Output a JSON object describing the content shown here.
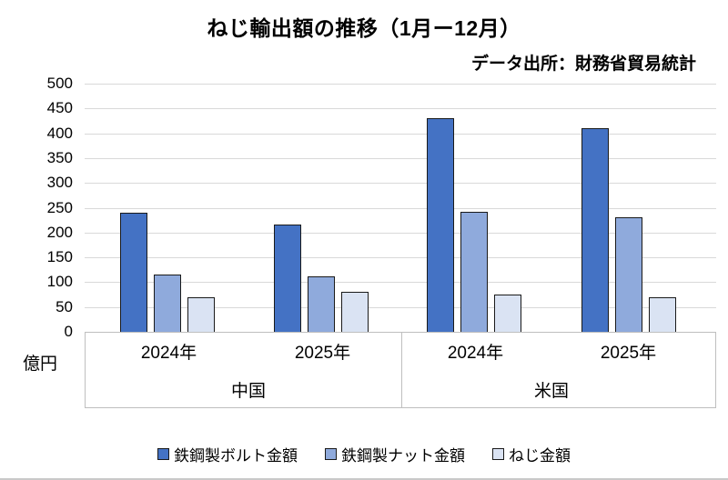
{
  "chart_data": {
    "type": "bar",
    "title": "ねじ輸出額の推移（1月ー12月）",
    "source_note": "データ出所：財務省貿易統計",
    "unit_label": "億円",
    "y_axis": {
      "min": 0,
      "max": 500,
      "step": 50,
      "ticks": [
        0,
        50,
        100,
        150,
        200,
        250,
        300,
        350,
        400,
        450,
        500
      ]
    },
    "grid": true,
    "legend_position": "bottom",
    "groups": [
      {
        "label": "中国",
        "years": [
          "2024年",
          "2025年"
        ]
      },
      {
        "label": "米国",
        "years": [
          "2024年",
          "2025年"
        ]
      }
    ],
    "categories": [
      "中国 2024年",
      "中国 2025年",
      "米国 2024年",
      "米国 2025年"
    ],
    "series": [
      {
        "name": "鉄鋼製ボルト金額",
        "color": "#4472c4",
        "values": [
          240,
          217,
          430,
          410
        ]
      },
      {
        "name": "鉄鋼製ナット金額",
        "color": "#8faadc",
        "values": [
          115,
          112,
          242,
          230
        ]
      },
      {
        "name": "ねじ金額",
        "color": "#dae3f3",
        "values": [
          70,
          80,
          75,
          70
        ]
      }
    ],
    "colors": {
      "gridline": "#d9d9d9",
      "axis_border": "#bfbfbf",
      "bar_border": "#1a1a1a"
    }
  }
}
